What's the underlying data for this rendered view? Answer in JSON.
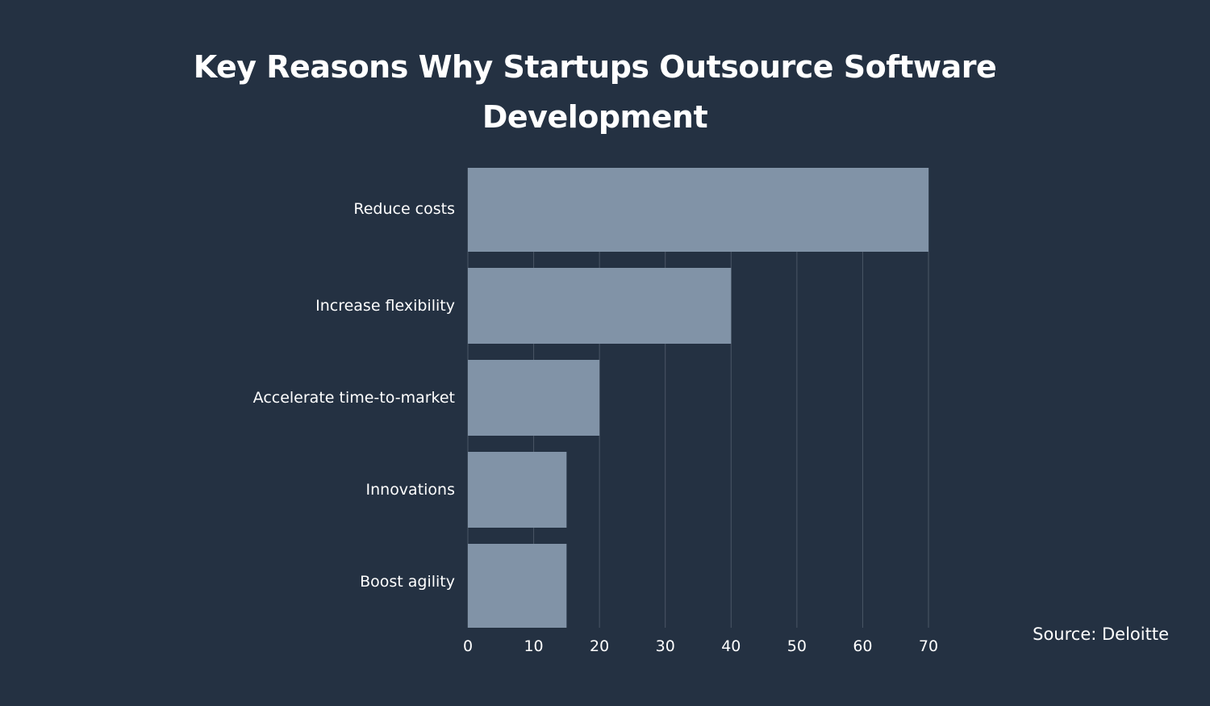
{
  "chart_data": {
    "type": "bar",
    "orientation": "horizontal",
    "title": "Key Reasons Why Startups Outsource Software Development",
    "categories": [
      "Reduce costs",
      "Increase flexibility",
      "Accelerate time-to-market",
      "Innovations",
      "Boost agility"
    ],
    "values": [
      70,
      40,
      20,
      15,
      15
    ],
    "xlim": [
      0,
      70
    ],
    "xticks": [
      0,
      10,
      20,
      30,
      40,
      50,
      60,
      70
    ],
    "xlabel": "",
    "ylabel": "",
    "grid": "vertical",
    "colors": {
      "background": "#243142",
      "bar": "#8193a7",
      "grid": "#4a5666",
      "text": "#ffffff"
    }
  },
  "source": "Source: Deloitte"
}
